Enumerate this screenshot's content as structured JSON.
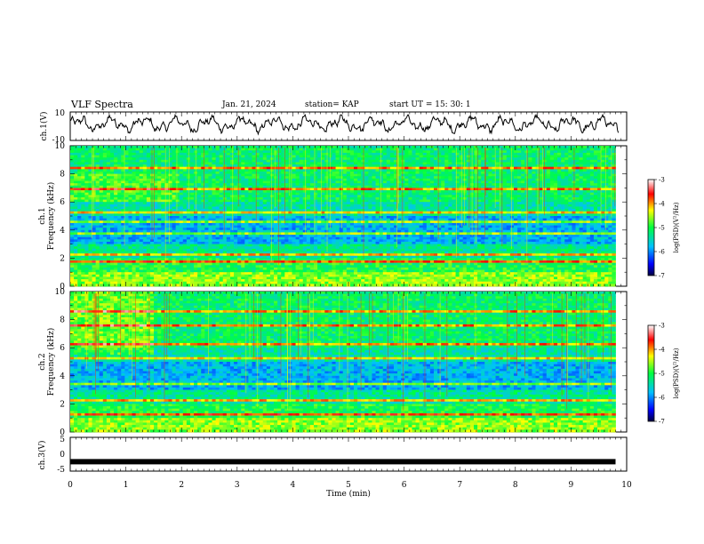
{
  "header": {
    "title": "VLF Spectra",
    "date": "Jan. 21, 2024",
    "station": "station= KAP",
    "start": "start  UT =   15: 30: 1"
  },
  "chart_data": [
    {
      "type": "line",
      "panel": "ch1-waveform",
      "ylabel": "ch.1(V)",
      "ylim": [
        -10,
        10
      ],
      "yticks": [
        "10",
        "-10"
      ],
      "xlim": [
        0,
        10
      ],
      "approx_range": [
        -6,
        8
      ]
    },
    {
      "type": "heatmap",
      "panel": "ch1-spectrogram",
      "ylabel": "ch.1\nFrequency (kHz)",
      "ylabel_lines": [
        "ch.1",
        "Frequency (kHz)"
      ],
      "ylim": [
        0,
        10
      ],
      "yticks": [
        "0",
        "2",
        "4",
        "6",
        "8",
        "10"
      ],
      "xlim": [
        0,
        10
      ],
      "data_end_min": 9.8,
      "colorbar": {
        "label": "log(PSD)(V²/Hz)",
        "range": [
          -7,
          -3
        ],
        "ticks": [
          "-3",
          "-4",
          "-5",
          "-6",
          "-7"
        ]
      }
    },
    {
      "type": "heatmap",
      "panel": "ch2-spectrogram",
      "ylabel_lines": [
        "ch.2",
        "Frequency (kHz)"
      ],
      "ylim": [
        0,
        10
      ],
      "yticks": [
        "0",
        "2",
        "4",
        "6",
        "8",
        "10"
      ],
      "xlim": [
        0,
        10
      ],
      "data_end_min": 9.8,
      "colorbar": {
        "label": "log(PSD)(V²/Hz)",
        "range": [
          -7,
          -3
        ],
        "ticks": [
          "-3",
          "-4",
          "-5",
          "-6",
          "-7"
        ]
      }
    },
    {
      "type": "line",
      "panel": "ch3-waveform",
      "ylabel": "ch.3(V)",
      "ylim": [
        -5,
        5
      ],
      "yticks": [
        "5",
        "0",
        "-5"
      ],
      "xlim": [
        0,
        10
      ],
      "constant_value": -2.2
    }
  ],
  "xaxis": {
    "label": "Time (min)",
    "ticks": [
      "0",
      "1",
      "2",
      "3",
      "4",
      "5",
      "6",
      "7",
      "8",
      "9",
      "10"
    ]
  },
  "colors": {
    "spectro_low": "#0000a0",
    "spectro_mid": "#00e060",
    "spectro_high": "#ff0000",
    "line": "#000000"
  }
}
